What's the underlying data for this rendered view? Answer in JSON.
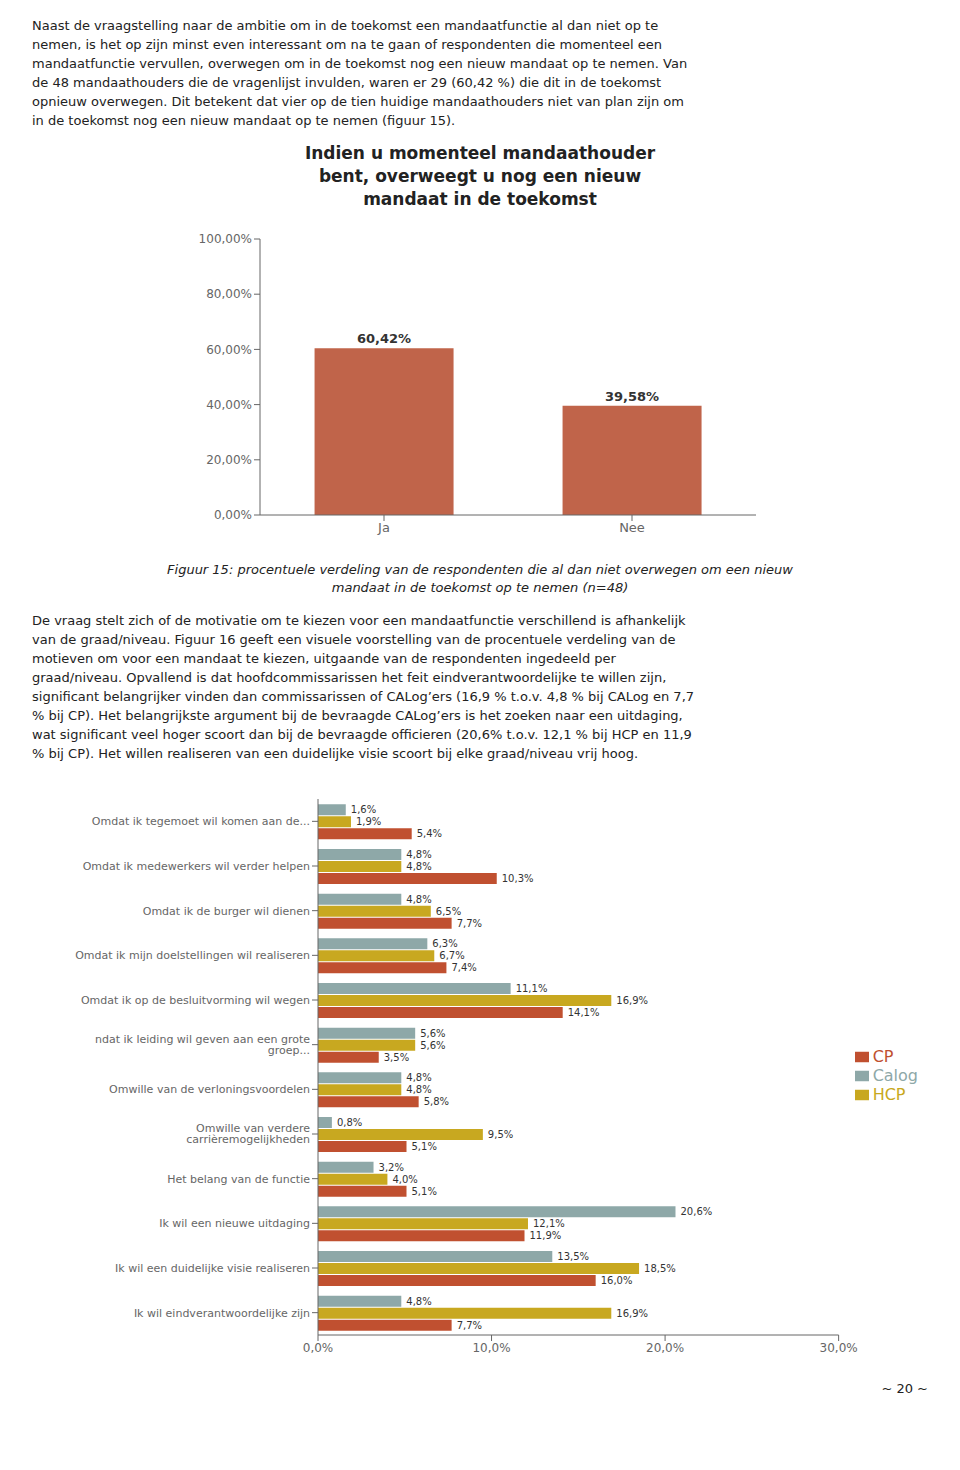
{
  "page_number": "~ 20 ~",
  "chart_data": [
    {
      "type": "bar",
      "title": "Indien u momenteel mandaathouder\nbent, overweegt u nog een nieuw\nmandaat in de toekomst",
      "annotations": [
        "Naast de vraagstelling naar de ambitie om in de toekomst een mandaatfunctie al dan niet op te",
        "nemen, is het op zijn minst even interessant om na te gaan of respondenten die momenteel een",
        "mandaatfunctie vervullen, overwegen om in de toekomst nog een nieuw mandaat op te nemen. Van",
        "de 48 mandaathouders die de vragenlijst invulden, waren er 29 (60,42 %) die dit in de toekomst",
        "opnieuw overwegen. Dit betekent dat vier op de tien huidige mandaathouders niet van plan zijn om",
        "in de toekomst nog een nieuw mandaat op te nemen (figuur 15)."
      ],
      "caption": [
        "Figuur 15: procentuele verdeling van de respondenten die al dan niet overwegen om een nieuw",
        "mandaat in de toekomst op te nemen (n=48)"
      ],
      "categories": [
        "Ja",
        "Nee"
      ],
      "values": [
        60.42,
        39.58
      ],
      "value_labels": [
        "60,42%",
        "39,58%"
      ],
      "data_labels": true,
      "color": "#C0644A",
      "ylim": [
        0,
        100
      ],
      "yticks": [
        {
          "value": 0,
          "label": "0,00%"
        },
        {
          "value": 20,
          "label": "20,00%"
        },
        {
          "value": 40,
          "label": "40,00%"
        },
        {
          "value": 60,
          "label": "60,00%"
        },
        {
          "value": 80,
          "label": "80,00%"
        },
        {
          "value": 100,
          "label": "100,00%"
        }
      ],
      "grid": false
    },
    {
      "type": "bar",
      "orientation": "horizontal",
      "annotations": [
        "De vraag stelt zich of de motivatie om te kiezen voor een mandaatfunctie verschillend is afhankelijk",
        "van de graad/niveau. Figuur 16 geeft een visuele voorstelling van de procentuele verdeling van de",
        "motieven om voor een mandaat te kiezen, uitgaande van de respondenten ingedeeld per",
        "graad/niveau. Opvallend is dat hoofdcommissarissen het feit eindverantwoordelijke te willen zijn,",
        "significant belangrijker vinden dan commissarissen of CALog’ers (16,9 % t.o.v. 4,8 % bij CALog en 7,7",
        "% bij CP). Het belangrijkste argument bij de bevraagde CALog’ers is het zoeken naar een uitdaging,",
        "wat significant veel hoger scoort dan bij de bevraagde officieren (20,6% t.o.v. 12,1 % bij HCP en 11,9",
        "% bij CP). Het willen realiseren van een duidelijke visie scoort bij elke graad/niveau vrij hoog."
      ],
      "categories": [
        "Omdat ik tegemoet wil komen aan de...",
        "Omdat ik medewerkers wil verder helpen",
        "Omdat ik de burger wil dienen",
        "Omdat ik mijn doelstellingen wil realiseren",
        "Omdat ik op de besluitvorming wil wegen",
        "ndat ik leiding wil geven aan een grote groep...",
        "Omwille van de verloningsvoordelen",
        "Omwille van verdere carrièremogelijkheden",
        "Het belang van de functie",
        "Ik wil een nieuwe uitdaging",
        "Ik wil een duidelijke visie realiseren",
        "Ik wil eindverantwoordelijke zijn"
      ],
      "series": [
        {
          "name": "Calog",
          "color": "#8EA8A8",
          "values": [
            1.6,
            4.8,
            4.8,
            6.3,
            11.1,
            5.6,
            4.8,
            0.8,
            3.2,
            20.6,
            13.5,
            4.8
          ],
          "value_labels": [
            "1,6%",
            "4,8%",
            "4,8%",
            "6,3%",
            "11,1%",
            "5,6%",
            "4,8%",
            "0,8%",
            "3,2%",
            "20,6%",
            "13,5%",
            "4,8%"
          ]
        },
        {
          "name": "HCP",
          "color": "#C8A820",
          "values": [
            1.9,
            4.8,
            6.5,
            6.7,
            16.9,
            5.6,
            4.8,
            9.5,
            4.0,
            12.1,
            18.5,
            16.9
          ],
          "value_labels": [
            "1,9%",
            "4,8%",
            "6,5%",
            "6,7%",
            "16,9%",
            "5,6%",
            "4,8%",
            "9,5%",
            "4,0%",
            "12,1%",
            "18,5%",
            "16,9%"
          ]
        },
        {
          "name": "CP",
          "color": "#C05030",
          "values": [
            5.4,
            10.3,
            7.7,
            7.4,
            14.1,
            3.5,
            5.8,
            5.1,
            5.1,
            11.9,
            16.0,
            7.7
          ],
          "value_labels": [
            "5,4%",
            "10,3%",
            "7,7%",
            "7,4%",
            "14,1%",
            "3,5%",
            "5,8%",
            "5,1%",
            "5,1%",
            "11,9%",
            "16,0%",
            "7,7%"
          ]
        }
      ],
      "data_labels": true,
      "xlim": [
        0,
        30
      ],
      "xticks": [
        {
          "value": 0,
          "label": "0,0%"
        },
        {
          "value": 10,
          "label": "10,0%"
        },
        {
          "value": 20,
          "label": "20,0%"
        },
        {
          "value": 30,
          "label": "30,0%"
        }
      ],
      "legend": "right",
      "grid": false
    }
  ]
}
